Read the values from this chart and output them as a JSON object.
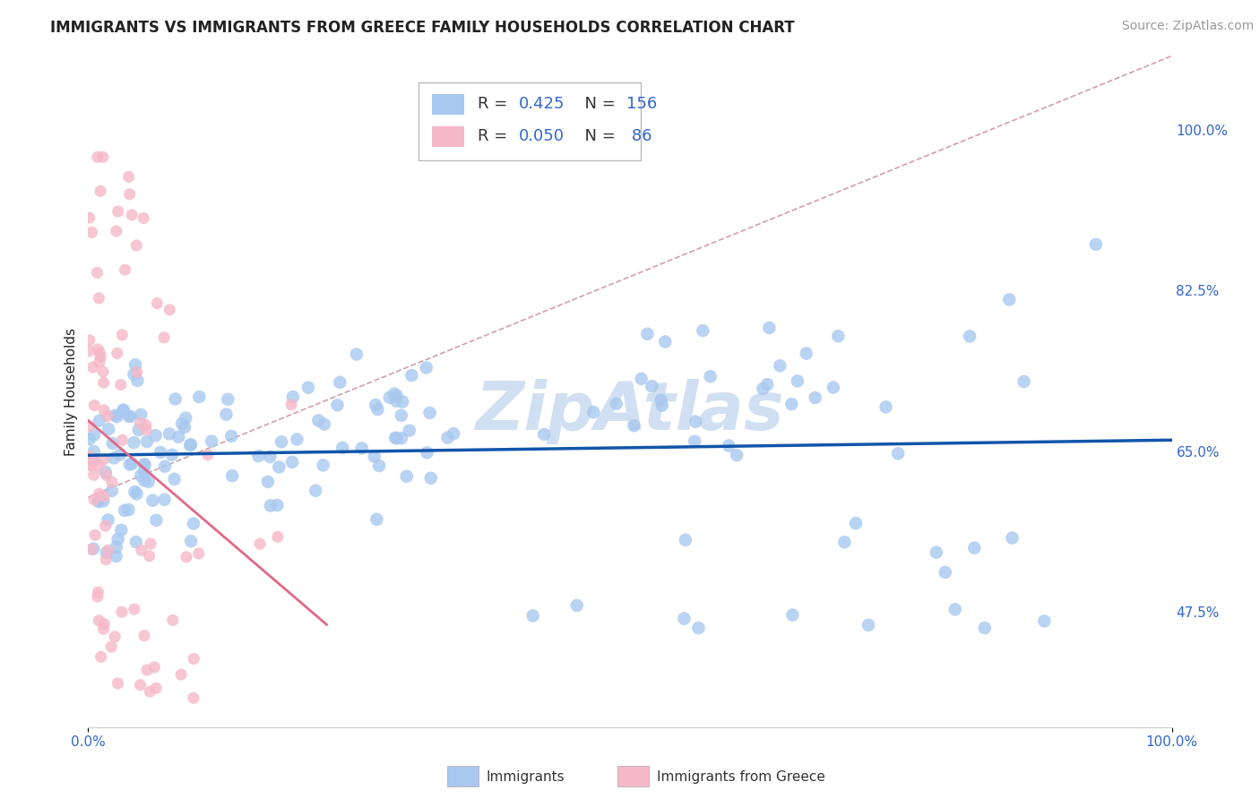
{
  "title": "IMMIGRANTS VS IMMIGRANTS FROM GREECE FAMILY HOUSEHOLDS CORRELATION CHART",
  "source": "Source: ZipAtlas.com",
  "ylabel": "Family Households",
  "xlim": [
    0,
    1.0
  ],
  "ylim": [
    0.35,
    1.08
  ],
  "ytick_positions": [
    0.475,
    0.65,
    0.825,
    1.0
  ],
  "ytick_labels": [
    "47.5%",
    "65.0%",
    "82.5%",
    "100.0%"
  ],
  "xtick_positions": [
    0.0,
    1.0
  ],
  "xtick_labels": [
    "0.0%",
    "100.0%"
  ],
  "legend_r1": "0.425",
  "legend_n1": "156",
  "legend_r2": "0.050",
  "legend_n2": " 86",
  "blue_color": "#a8c8f0",
  "pink_color": "#f5b8c8",
  "line_blue": "#1155aa",
  "line_pink": "#e06888",
  "line_dash_color": "#d0a0a8",
  "watermark_color": "#aac8e8",
  "title_fontsize": 12,
  "axis_label_fontsize": 11,
  "tick_fontsize": 11,
  "source_fontsize": 10,
  "grid_color": "#dddddd",
  "tick_color": "#3366cc",
  "text_color": "#222222"
}
